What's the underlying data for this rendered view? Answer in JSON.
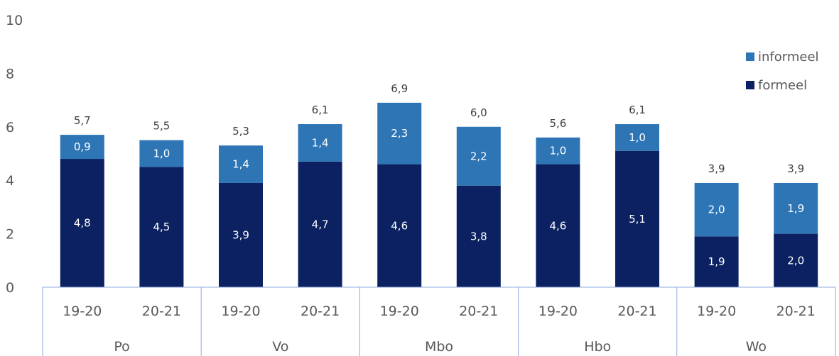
{
  "chart_data": {
    "type": "bar",
    "stacked": true,
    "groups": [
      {
        "name": "Po",
        "categories": [
          "19-20",
          "20-21"
        ]
      },
      {
        "name": "Vo",
        "categories": [
          "19-20",
          "20-21"
        ]
      },
      {
        "name": "Mbo",
        "categories": [
          "19-20",
          "20-21"
        ]
      },
      {
        "name": "Hbo",
        "categories": [
          "19-20",
          "20-21"
        ]
      },
      {
        "name": "Wo",
        "categories": [
          "19-20",
          "20-21"
        ]
      }
    ],
    "series": [
      {
        "name": "formeel",
        "color": "#0b2161",
        "values": [
          4.8,
          4.5,
          3.9,
          4.7,
          4.6,
          3.8,
          4.6,
          5.1,
          1.9,
          2.0
        ],
        "labels": [
          "4,8",
          "4,5",
          "3,9",
          "4,7",
          "4,6",
          "3,8",
          "4,6",
          "5,1",
          "1,9",
          "2,0"
        ]
      },
      {
        "name": "informeel",
        "color": "#2e75b6",
        "values": [
          0.9,
          1.0,
          1.4,
          1.4,
          2.3,
          2.2,
          1.0,
          1.0,
          2.0,
          1.9
        ],
        "labels": [
          "0,9",
          "1,0",
          "1,4",
          "1,4",
          "2,3",
          "2,2",
          "1,0",
          "1,0",
          "2,0",
          "1,9"
        ]
      }
    ],
    "totals": [
      5.7,
      5.5,
      5.3,
      6.1,
      6.9,
      6.0,
      5.6,
      6.1,
      3.9,
      3.9
    ],
    "total_labels": [
      "5,7",
      "5,5",
      "5,3",
      "6,1",
      "6,9",
      "6,0",
      "5,6",
      "6,1",
      "3,9",
      "3,9"
    ],
    "ylim": [
      0,
      10
    ],
    "yticks": [
      "0",
      "2",
      "4",
      "6",
      "8",
      "10"
    ],
    "grid": false,
    "legend": {
      "position": "top-right",
      "entries": [
        "informeel",
        "formeel"
      ]
    }
  }
}
